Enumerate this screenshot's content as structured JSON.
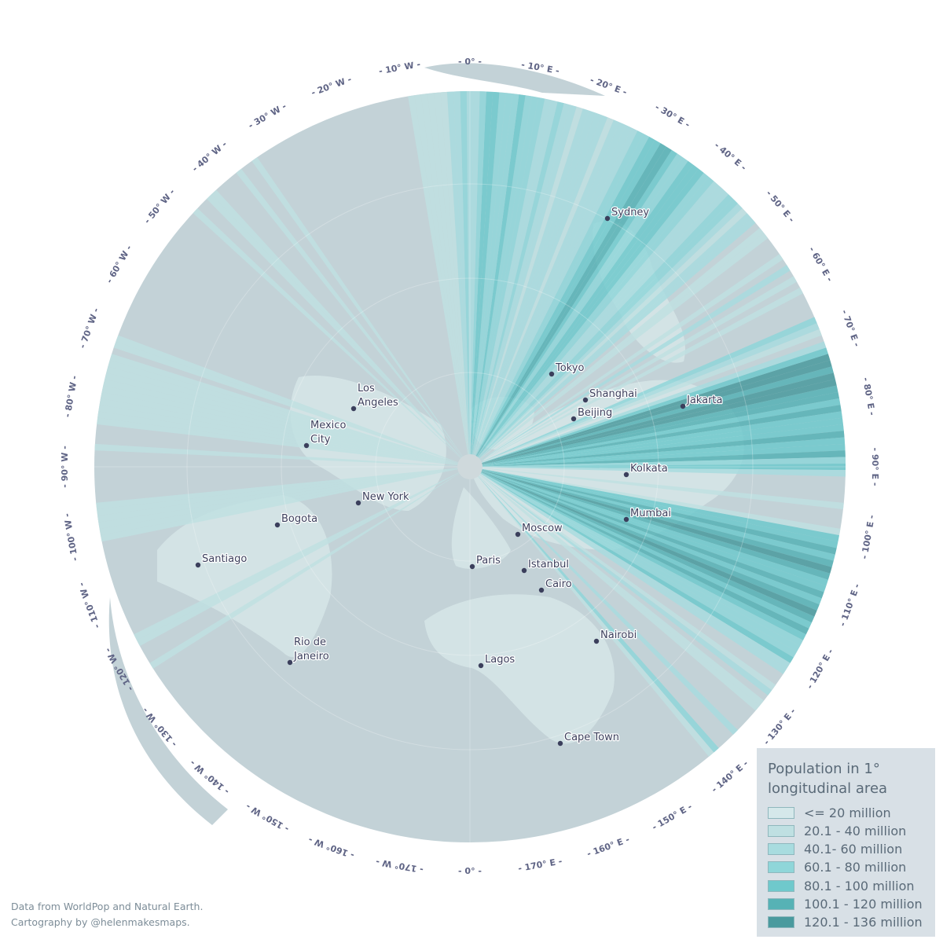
{
  "legend": {
    "title_line1": "Population in 1°",
    "title_line2": "longitudinal area",
    "classes": [
      {
        "label": "<= 20 million",
        "color": "#d5e8ea"
      },
      {
        "label": "20.1 - 40 million",
        "color": "#bfe0e2"
      },
      {
        "label": "40.1- 60 million",
        "color": "#a8dcdf"
      },
      {
        "label": "60.1 - 80 million",
        "color": "#8fd6d9"
      },
      {
        "label": "80.1 - 100 million",
        "color": "#6fc9cc"
      },
      {
        "label": "100.1 - 120 million",
        "color": "#56b2b5"
      },
      {
        "label": "120.1 - 136 million",
        "color": "#4a9a9e"
      }
    ]
  },
  "credits": {
    "line1": "Data from WorldPop and Natural Earth.",
    "line2": "Cartography by @helenmakesmaps."
  },
  "colors": {
    "ocean": "#c3d2d7",
    "land": "#d6e6e8",
    "tick_text": "#5f6485",
    "city_dot": "#3b3f5c"
  },
  "ticks": [
    {
      "label": "- 0° -",
      "lon": 0,
      "pos": "top"
    },
    {
      "label": "- 170° E -",
      "lon": 170
    },
    {
      "label": "- 160° E -",
      "lon": 160
    },
    {
      "label": "- 150° E -",
      "lon": 150
    },
    {
      "label": "- 140° E -",
      "lon": 140
    },
    {
      "label": "- 130° E -",
      "lon": 130
    },
    {
      "label": "- 120° E -",
      "lon": 120
    },
    {
      "label": "- 110° E -",
      "lon": 110
    },
    {
      "label": "- 100° E -",
      "lon": 100
    },
    {
      "label": "- 90° E -",
      "lon": 90
    },
    {
      "label": "- 80° E -",
      "lon": 80
    },
    {
      "label": "- 70° E -",
      "lon": 70
    },
    {
      "label": "- 60° E -",
      "lon": 60
    },
    {
      "label": "- 50° E -",
      "lon": 50
    },
    {
      "label": "- 40° E -",
      "lon": 40
    },
    {
      "label": "- 30° E -",
      "lon": 30
    },
    {
      "label": "- 20° E -",
      "lon": 20
    },
    {
      "label": "- 10° E -",
      "lon": 10
    },
    {
      "label": "- 0° -",
      "lon": 0,
      "pos": "bottom"
    },
    {
      "label": "- 10° W -",
      "lon": -10
    },
    {
      "label": "- 20° W -",
      "lon": -20
    },
    {
      "label": "- 30° W -",
      "lon": -30
    },
    {
      "label": "- 40° W -",
      "lon": -40
    },
    {
      "label": "- 50° W -",
      "lon": -50
    },
    {
      "label": "- 60° W -",
      "lon": -60
    },
    {
      "label": "- 70° W -",
      "lon": -70
    },
    {
      "label": "- 80° W -",
      "lon": -80
    },
    {
      "label": "- 90° W -",
      "lon": -90
    },
    {
      "label": "- 100° W -",
      "lon": -100
    },
    {
      "label": "- 110° W -",
      "lon": -110
    },
    {
      "label": "- 120° W -",
      "lon": -120
    },
    {
      "label": "- 130° W -",
      "lon": -130
    },
    {
      "label": "- 140° W -",
      "lon": -140
    },
    {
      "label": "- 150° W -",
      "lon": -150
    },
    {
      "label": "- 160° W -",
      "lon": -160
    },
    {
      "label": "- 170° W -",
      "lon": -170
    }
  ],
  "cities": [
    {
      "name": "Sydney",
      "lines": [
        "Sydney"
      ]
    },
    {
      "name": "Tokyo",
      "lines": [
        "Tokyo"
      ]
    },
    {
      "name": "Shanghai",
      "lines": [
        "Shanghai"
      ]
    },
    {
      "name": "Beijing",
      "lines": [
        "Beijing"
      ]
    },
    {
      "name": "Jakarta",
      "lines": [
        "Jakarta"
      ]
    },
    {
      "name": "Kolkata",
      "lines": [
        "Kolkata"
      ]
    },
    {
      "name": "Mumbai",
      "lines": [
        "Mumbai"
      ]
    },
    {
      "name": "Moscow",
      "lines": [
        "Moscow"
      ]
    },
    {
      "name": "Paris",
      "lines": [
        "Paris"
      ]
    },
    {
      "name": "Istanbul",
      "lines": [
        "Istanbul"
      ]
    },
    {
      "name": "Cairo",
      "lines": [
        "Cairo"
      ]
    },
    {
      "name": "Nairobi",
      "lines": [
        "Nairobi"
      ]
    },
    {
      "name": "Lagos",
      "lines": [
        "Lagos"
      ]
    },
    {
      "name": "Cape Town",
      "lines": [
        "Cape Town"
      ]
    },
    {
      "name": "Los Angeles",
      "lines": [
        "Los",
        "Angeles"
      ]
    },
    {
      "name": "Mexico City",
      "lines": [
        "Mexico",
        "City"
      ]
    },
    {
      "name": "New York",
      "lines": [
        "New York"
      ]
    },
    {
      "name": "Bogota",
      "lines": [
        "Bogota"
      ]
    },
    {
      "name": "Santiago",
      "lines": [
        "Santiago"
      ]
    },
    {
      "name": "Rio de Janeiro",
      "lines": [
        "Rio de",
        "Janeiro"
      ]
    }
  ],
  "population_bands": [
    {
      "lon": 73,
      "class": 6
    },
    {
      "lon": 74,
      "class": 6
    },
    {
      "lon": 75,
      "class": 5
    },
    {
      "lon": 76,
      "class": 6
    },
    {
      "lon": 77,
      "class": 6
    },
    {
      "lon": 78,
      "class": 5
    },
    {
      "lon": 79,
      "class": 5
    },
    {
      "lon": 80,
      "class": 4
    },
    {
      "lon": 81,
      "class": 5
    },
    {
      "lon": 82,
      "class": 4
    },
    {
      "lon": 83,
      "class": 4
    },
    {
      "lon": 84,
      "class": 4
    },
    {
      "lon": 85,
      "class": 5
    },
    {
      "lon": 86,
      "class": 4
    },
    {
      "lon": 87,
      "class": 4
    },
    {
      "lon": 88,
      "class": 5
    },
    {
      "lon": 89,
      "class": 3
    },
    {
      "lon": 90,
      "class": 4
    },
    {
      "lon": 91,
      "class": 2
    },
    {
      "lon": 96,
      "class": 1
    },
    {
      "lon": 100,
      "class": 1
    },
    {
      "lon": 101,
      "class": 4
    },
    {
      "lon": 102,
      "class": 4
    },
    {
      "lon": 103,
      "class": 5
    },
    {
      "lon": 104,
      "class": 4
    },
    {
      "lon": 105,
      "class": 5
    },
    {
      "lon": 106,
      "class": 6
    },
    {
      "lon": 107,
      "class": 5
    },
    {
      "lon": 108,
      "class": 4
    },
    {
      "lon": 109,
      "class": 4
    },
    {
      "lon": 110,
      "class": 5
    },
    {
      "lon": 111,
      "class": 4
    },
    {
      "lon": 112,
      "class": 5
    },
    {
      "lon": 113,
      "class": 6
    },
    {
      "lon": 114,
      "class": 5
    },
    {
      "lon": 115,
      "class": 4
    },
    {
      "lon": 116,
      "class": 5
    },
    {
      "lon": 117,
      "class": 4
    },
    {
      "lon": 118,
      "class": 3
    },
    {
      "lon": 119,
      "class": 3
    },
    {
      "lon": 120,
      "class": 3
    },
    {
      "lon": 121,
      "class": 4
    },
    {
      "lon": 122,
      "class": 2
    },
    {
      "lon": 123,
      "class": 2
    },
    {
      "lon": 126,
      "class": 1
    },
    {
      "lon": 127,
      "class": 2
    },
    {
      "lon": 129,
      "class": 1
    },
    {
      "lon": 130,
      "class": 1
    },
    {
      "lon": 135,
      "class": 2
    },
    {
      "lon": 139,
      "class": 3
    },
    {
      "lon": 140,
      "class": 1
    },
    {
      "lon": 67,
      "class": 3
    },
    {
      "lon": 68,
      "class": 2
    },
    {
      "lon": 69,
      "class": 1
    },
    {
      "lon": 71,
      "class": 2
    },
    {
      "lon": 72,
      "class": 4
    },
    {
      "lon": 62,
      "class": 1
    },
    {
      "lon": 60,
      "class": 1
    },
    {
      "lon": 58,
      "class": 2
    },
    {
      "lon": 56,
      "class": 1
    },
    {
      "lon": 52,
      "class": 1
    },
    {
      "lon": 51,
      "class": 1
    },
    {
      "lon": 49,
      "class": 2
    },
    {
      "lon": 48,
      "class": 2
    },
    {
      "lon": 47,
      "class": 1
    },
    {
      "lon": 46,
      "class": 2
    },
    {
      "lon": 45,
      "class": 3
    },
    {
      "lon": 44,
      "class": 3
    },
    {
      "lon": 43,
      "class": 2
    },
    {
      "lon": 42,
      "class": 2
    },
    {
      "lon": 41,
      "class": 2
    },
    {
      "lon": 40,
      "class": 3
    },
    {
      "lon": 39,
      "class": 3
    },
    {
      "lon": 38,
      "class": 4
    },
    {
      "lon": 37,
      "class": 4
    },
    {
      "lon": 36,
      "class": 4
    },
    {
      "lon": 35,
      "class": 3
    },
    {
      "lon": 34,
      "class": 3
    },
    {
      "lon": 33,
      "class": 4
    },
    {
      "lon": 32,
      "class": 5
    },
    {
      "lon": 31,
      "class": 5
    },
    {
      "lon": 30,
      "class": 4
    },
    {
      "lon": 29,
      "class": 4
    },
    {
      "lon": 28,
      "class": 3
    },
    {
      "lon": 27,
      "class": 3
    },
    {
      "lon": 26,
      "class": 2
    },
    {
      "lon": 25,
      "class": 2
    },
    {
      "lon": 24,
      "class": 2
    },
    {
      "lon": 23,
      "class": 2
    },
    {
      "lon": 22,
      "class": 1
    },
    {
      "lon": 21,
      "class": 2
    },
    {
      "lon": 20,
      "class": 2
    },
    {
      "lon": 19,
      "class": 2
    },
    {
      "lon": 18,
      "class": 2
    },
    {
      "lon": 17,
      "class": 1
    },
    {
      "lon": 16,
      "class": 2
    },
    {
      "lon": 15,
      "class": 2
    },
    {
      "lon": 14,
      "class": 3
    },
    {
      "lon": 13,
      "class": 2
    },
    {
      "lon": 12,
      "class": 2
    },
    {
      "lon": 11,
      "class": 3
    },
    {
      "lon": 10,
      "class": 3
    },
    {
      "lon": 9,
      "class": 3
    },
    {
      "lon": 8,
      "class": 4
    },
    {
      "lon": 7,
      "class": 3
    },
    {
      "lon": 6,
      "class": 3
    },
    {
      "lon": 5,
      "class": 3
    },
    {
      "lon": 4,
      "class": 4
    },
    {
      "lon": 3,
      "class": 4
    },
    {
      "lon": 2,
      "class": 3
    },
    {
      "lon": 1,
      "class": 2
    },
    {
      "lon": 0,
      "class": 2
    },
    {
      "lon": -1,
      "class": 3
    },
    {
      "lon": -2,
      "class": 2
    },
    {
      "lon": -3,
      "class": 2
    },
    {
      "lon": -4,
      "class": 1
    },
    {
      "lon": -5,
      "class": 1
    },
    {
      "lon": -6,
      "class": 1
    },
    {
      "lon": -7,
      "class": 1
    },
    {
      "lon": -8,
      "class": 1
    },
    {
      "lon": -9,
      "class": 1
    },
    {
      "lon": -35,
      "class": 1
    },
    {
      "lon": -38,
      "class": 1
    },
    {
      "lon": -43,
      "class": 1
    },
    {
      "lon": -44,
      "class": 1
    },
    {
      "lon": -47,
      "class": 1
    },
    {
      "lon": -70,
      "class": 1
    },
    {
      "lon": -71,
      "class": 1
    },
    {
      "lon": -73,
      "class": 1
    },
    {
      "lon": -74,
      "class": 1
    },
    {
      "lon": -75,
      "class": 1
    },
    {
      "lon": -76,
      "class": 1
    },
    {
      "lon": -77,
      "class": 1
    },
    {
      "lon": -78,
      "class": 1
    },
    {
      "lon": -79,
      "class": 1
    },
    {
      "lon": -80,
      "class": 1
    },
    {
      "lon": -81,
      "class": 1
    },
    {
      "lon": -82,
      "class": 1
    },
    {
      "lon": -83,
      "class": 1
    },
    {
      "lon": -87,
      "class": 1
    },
    {
      "lon": -96,
      "class": 1
    },
    {
      "lon": -97,
      "class": 1
    },
    {
      "lon": -98,
      "class": 1
    },
    {
      "lon": -99,
      "class": 1
    },
    {
      "lon": -100,
      "class": 1
    },
    {
      "lon": -101,
      "class": 1
    },
    {
      "lon": -117,
      "class": 1
    },
    {
      "lon": -118,
      "class": 1
    },
    {
      "lon": -122,
      "class": 1
    }
  ]
}
